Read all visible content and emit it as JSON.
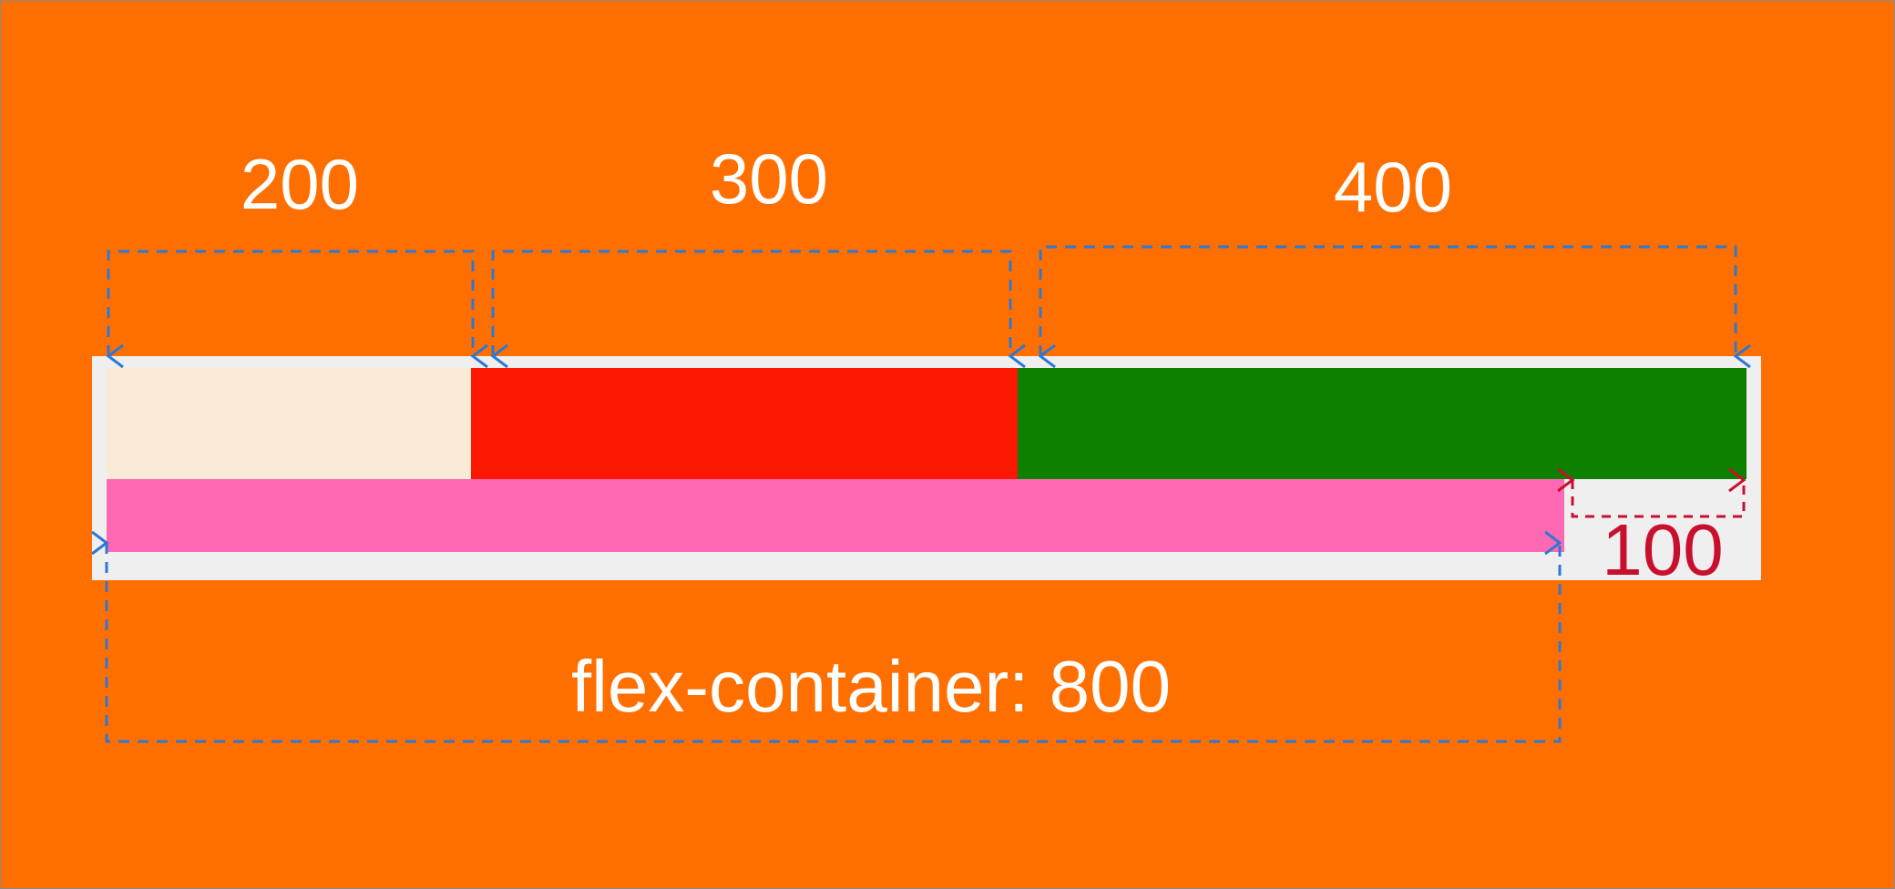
{
  "colors": {
    "background": "#FF6F00",
    "container": "#EFEFEF",
    "item_1": "#FAEBD7",
    "item_2": "#FA1900",
    "item_3": "#0E8000",
    "flex_container": "#FF69B4",
    "dimension_line_blue": "#2C78D4",
    "dimension_line_red": "#C8102E",
    "label_text": "#FFFFFF",
    "overflow_label_text": "#C8102E"
  },
  "labels": {
    "item_1_width": "200",
    "item_2_width": "300",
    "item_3_width": "400",
    "overflow_width": "100",
    "container_width": "flex-container: 800"
  }
}
